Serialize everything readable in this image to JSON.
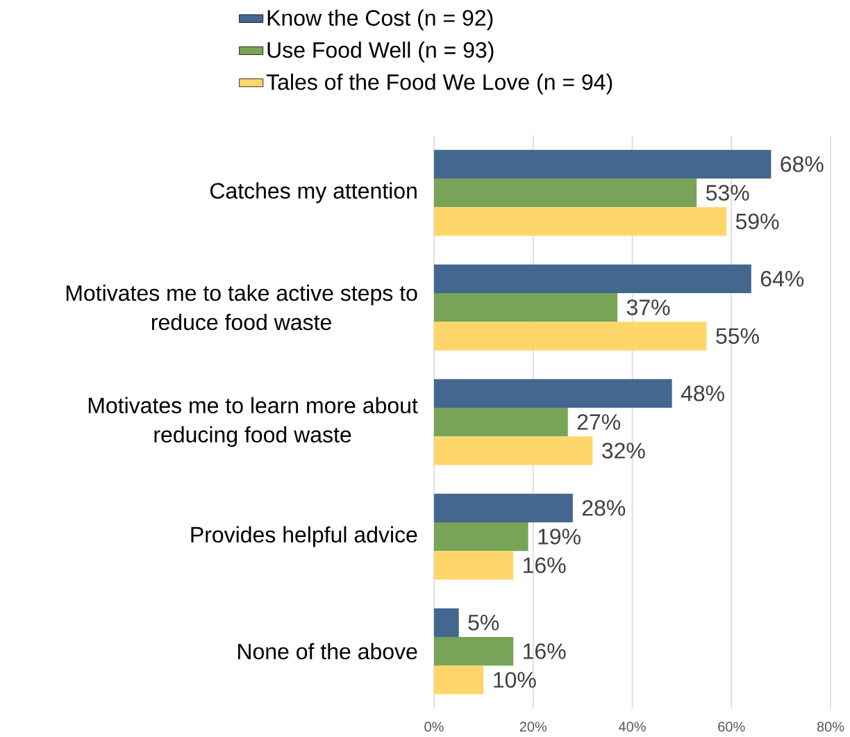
{
  "chart_data": {
    "type": "bar",
    "orientation": "horizontal",
    "categories": [
      "Catches my attention",
      "Motivates me to take active steps to reduce food waste",
      "Motivates me to learn more about reducing food waste",
      "Provides helpful advice",
      "None of the above"
    ],
    "series": [
      {
        "name": "Know the Cost (n = 92)",
        "color": "#44678f",
        "values": [
          68,
          64,
          48,
          28,
          5
        ],
        "value_labels": [
          "68%",
          "64%",
          "48%",
          "28%",
          "5%"
        ]
      },
      {
        "name": "Use Food Well (n = 93)",
        "color": "#77a456",
        "values": [
          53,
          37,
          27,
          19,
          16
        ],
        "value_labels": [
          "53%",
          "37%",
          "27%",
          "19%",
          "16%"
        ]
      },
      {
        "name": "Tales of the Food We Love (n = 94)",
        "color": "#ffd66a",
        "values": [
          59,
          55,
          32,
          16,
          10
        ],
        "value_labels": [
          "59%",
          "55%",
          "32%",
          "16%",
          "10%"
        ]
      }
    ],
    "xlim": [
      0,
      80
    ],
    "xticks": [
      {
        "value": 0,
        "label": "0%"
      },
      {
        "value": 20,
        "label": "20%"
      },
      {
        "value": 40,
        "label": "40%"
      },
      {
        "value": 60,
        "label": "60%"
      },
      {
        "value": 80,
        "label": "80%"
      }
    ],
    "grid": "x",
    "legend": "top"
  }
}
